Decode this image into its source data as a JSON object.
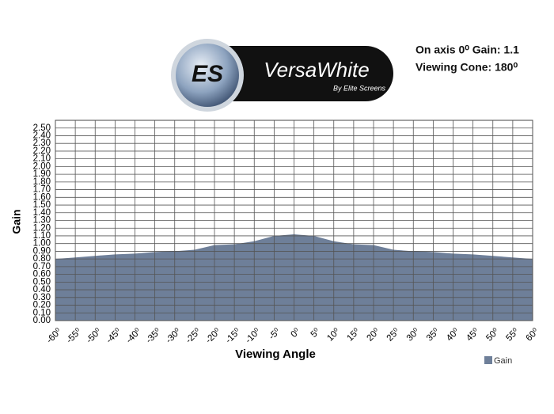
{
  "chart_data": {
    "type": "area",
    "logo": {
      "mark": "ES",
      "name": "VersaWhite",
      "byline": "By Elite Screens"
    },
    "annotations": [
      "On axis 0⁰ Gain: 1.1",
      "Viewing Cone: 180⁰"
    ],
    "y_label": "Gain",
    "x_label": "Viewing Angle",
    "x": [
      -60,
      -55,
      -50,
      -45,
      -40,
      -35,
      -30,
      -25,
      -20,
      -15,
      -10,
      -5,
      0,
      5,
      10,
      15,
      20,
      25,
      30,
      35,
      40,
      45,
      50,
      55,
      60
    ],
    "series": [
      {
        "name": "Gain",
        "color": "#6e7f99",
        "values": [
          0.8,
          0.82,
          0.84,
          0.86,
          0.87,
          0.89,
          0.9,
          0.92,
          0.98,
          0.99,
          1.03,
          1.1,
          1.12,
          1.1,
          1.03,
          0.99,
          0.98,
          0.92,
          0.9,
          0.89,
          0.87,
          0.86,
          0.84,
          0.82,
          0.8
        ]
      }
    ],
    "xlim": [
      -60,
      60
    ],
    "xticks": [
      {
        "value": -60,
        "label": "-60⁰"
      },
      {
        "value": -55,
        "label": "-55⁰"
      },
      {
        "value": -50,
        "label": "-50⁰"
      },
      {
        "value": -45,
        "label": "-45⁰"
      },
      {
        "value": -40,
        "label": "-40⁰"
      },
      {
        "value": -35,
        "label": "-35⁰"
      },
      {
        "value": -30,
        "label": "-30⁰"
      },
      {
        "value": -25,
        "label": "-25⁰"
      },
      {
        "value": -20,
        "label": "-20⁰"
      },
      {
        "value": -15,
        "label": "-15⁰"
      },
      {
        "value": -10,
        "label": "-10⁰"
      },
      {
        "value": -5,
        "label": "-5⁰"
      },
      {
        "value": 0,
        "label": "0⁰"
      },
      {
        "value": 5,
        "label": "5⁰"
      },
      {
        "value": 10,
        "label": "10⁰"
      },
      {
        "value": 15,
        "label": "15⁰"
      },
      {
        "value": 20,
        "label": "20⁰"
      },
      {
        "value": 25,
        "label": "25⁰"
      },
      {
        "value": 30,
        "label": "30⁰"
      },
      {
        "value": 35,
        "label": "35⁰"
      },
      {
        "value": 40,
        "label": "40⁰"
      },
      {
        "value": 45,
        "label": "45⁰"
      },
      {
        "value": 50,
        "label": "50⁰"
      },
      {
        "value": 55,
        "label": "55⁰"
      },
      {
        "value": 60,
        "label": "60⁰"
      }
    ],
    "ylim": [
      0,
      2.6
    ],
    "yticks": [
      {
        "value": 0,
        "label": "0.00"
      },
      {
        "value": 0.1,
        "label": "0.10"
      },
      {
        "value": 0.2,
        "label": "0.20"
      },
      {
        "value": 0.3,
        "label": "0.30"
      },
      {
        "value": 0.4,
        "label": "0.40"
      },
      {
        "value": 0.5,
        "label": "0.50"
      },
      {
        "value": 0.6,
        "label": "0.60"
      },
      {
        "value": 0.7,
        "label": "0.70"
      },
      {
        "value": 0.8,
        "label": "0.80"
      },
      {
        "value": 0.9,
        "label": "0.90"
      },
      {
        "value": 1,
        "label": "1.00"
      },
      {
        "value": 1.1,
        "label": "1.10"
      },
      {
        "value": 1.2,
        "label": "1.20"
      },
      {
        "value": 1.3,
        "label": "1.30"
      },
      {
        "value": 1.4,
        "label": "1.40"
      },
      {
        "value": 1.5,
        "label": "1.50"
      },
      {
        "value": 1.6,
        "label": "1.60"
      },
      {
        "value": 1.7,
        "label": "1.70"
      },
      {
        "value": 1.8,
        "label": "1.80"
      },
      {
        "value": 1.9,
        "label": "1.90"
      },
      {
        "value": 2,
        "label": "2.00"
      },
      {
        "value": 2.1,
        "label": "2.10"
      },
      {
        "value": 2.2,
        "label": "2.20"
      },
      {
        "value": 2.3,
        "label": "2.30"
      },
      {
        "value": 2.4,
        "label": "2.40"
      },
      {
        "value": 2.5,
        "label": "2.50"
      }
    ],
    "grid": true,
    "legend": "bottom-right"
  }
}
